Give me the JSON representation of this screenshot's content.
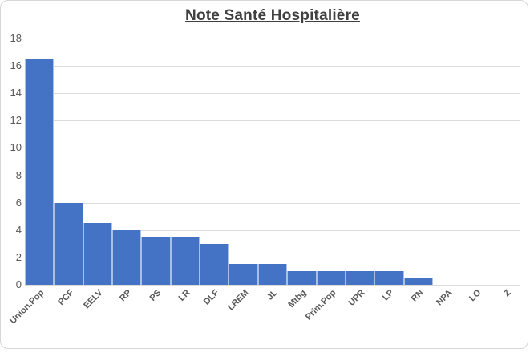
{
  "chart_data": {
    "type": "bar",
    "title": "Note Santé Hospitalière",
    "categories": [
      "Union.Pop",
      "PCF",
      "EELV",
      "RP",
      "PS",
      "LR",
      "DLF",
      "LREM",
      "JL",
      "Mtbg",
      "Prim.Pop",
      "UPR",
      "LP",
      "RN",
      "NPA",
      "LO",
      "Z"
    ],
    "values": [
      16.5,
      6,
      4.5,
      4,
      3.5,
      3.5,
      3,
      1.5,
      1.5,
      1,
      1,
      1,
      1,
      0.5,
      0,
      0,
      0
    ],
    "xlabel": "",
    "ylabel": "",
    "ylim": [
      0,
      18
    ],
    "yticks": [
      0,
      2,
      4,
      6,
      8,
      10,
      12,
      14,
      16,
      18
    ],
    "grid": true,
    "legend": false,
    "colors": {
      "bar_fill": "#4472c4",
      "bar_separator": "rgba(255,255,255,0.55)",
      "gridline": "#dcdcdc",
      "axis_tick_label": "#595959",
      "title": "#404040",
      "frame_border": "#d6d6d6",
      "background": "#ffffff"
    }
  }
}
